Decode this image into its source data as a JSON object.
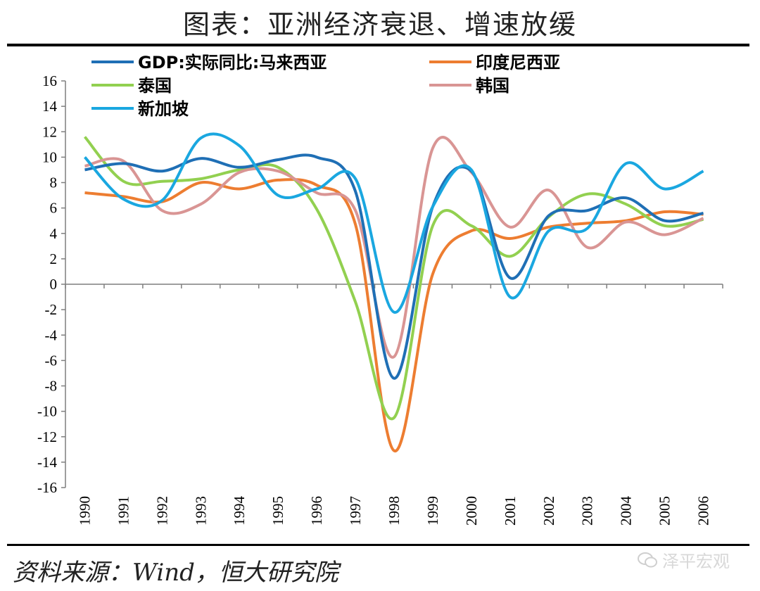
{
  "title": "图表：亚洲经济衰退、增速放缓",
  "source": "资料来源：Wind，恒大研究院",
  "watermark": "泽平宏观",
  "chart_data": {
    "type": "line",
    "x": [
      "1990",
      "1991",
      "1992",
      "1993",
      "1994",
      "1995",
      "1996",
      "1997",
      "1998",
      "1999",
      "2000",
      "2001",
      "2002",
      "2003",
      "2004",
      "2005",
      "2006"
    ],
    "ylim": [
      -16,
      16
    ],
    "yticks": [
      "16",
      "14",
      "12",
      "10",
      "8",
      "6",
      "4",
      "2",
      "0",
      "-2",
      "-4",
      "-6",
      "-8",
      "-10",
      "-12",
      "-14",
      "-16"
    ],
    "grid": false,
    "legend_position": "top",
    "series": [
      {
        "name": "GDP:实际同比:马来西亚",
        "color": "#1f6fb5",
        "values": [
          9.0,
          9.5,
          8.9,
          9.9,
          9.2,
          9.8,
          10.0,
          7.3,
          -7.4,
          6.1,
          8.9,
          0.5,
          5.4,
          5.8,
          6.8,
          5.0,
          5.6
        ]
      },
      {
        "name": "印度尼西亚",
        "color": "#ed7d31",
        "values": [
          7.2,
          6.9,
          6.5,
          8.0,
          7.5,
          8.2,
          7.8,
          4.7,
          -13.1,
          0.8,
          4.2,
          3.6,
          4.5,
          4.8,
          5.0,
          5.7,
          5.5
        ]
      },
      {
        "name": "泰国",
        "color": "#92d050",
        "values": [
          11.6,
          8.1,
          8.1,
          8.3,
          9.0,
          9.2,
          5.9,
          -1.4,
          -10.5,
          4.6,
          4.6,
          2.2,
          5.3,
          7.1,
          6.3,
          4.6,
          5.1
        ]
      },
      {
        "name": "韩国",
        "color": "#d99594",
        "values": [
          9.3,
          9.7,
          5.8,
          6.3,
          8.8,
          8.9,
          7.2,
          5.8,
          -5.7,
          10.7,
          8.8,
          4.5,
          7.4,
          2.9,
          4.9,
          3.9,
          5.2
        ]
      },
      {
        "name": "新加坡",
        "color": "#1aa7e0",
        "values": [
          10.0,
          6.7,
          6.6,
          11.5,
          10.9,
          7.0,
          7.5,
          8.3,
          -2.2,
          6.1,
          9.0,
          -1.0,
          4.2,
          4.4,
          9.5,
          7.5,
          8.9
        ]
      }
    ]
  }
}
